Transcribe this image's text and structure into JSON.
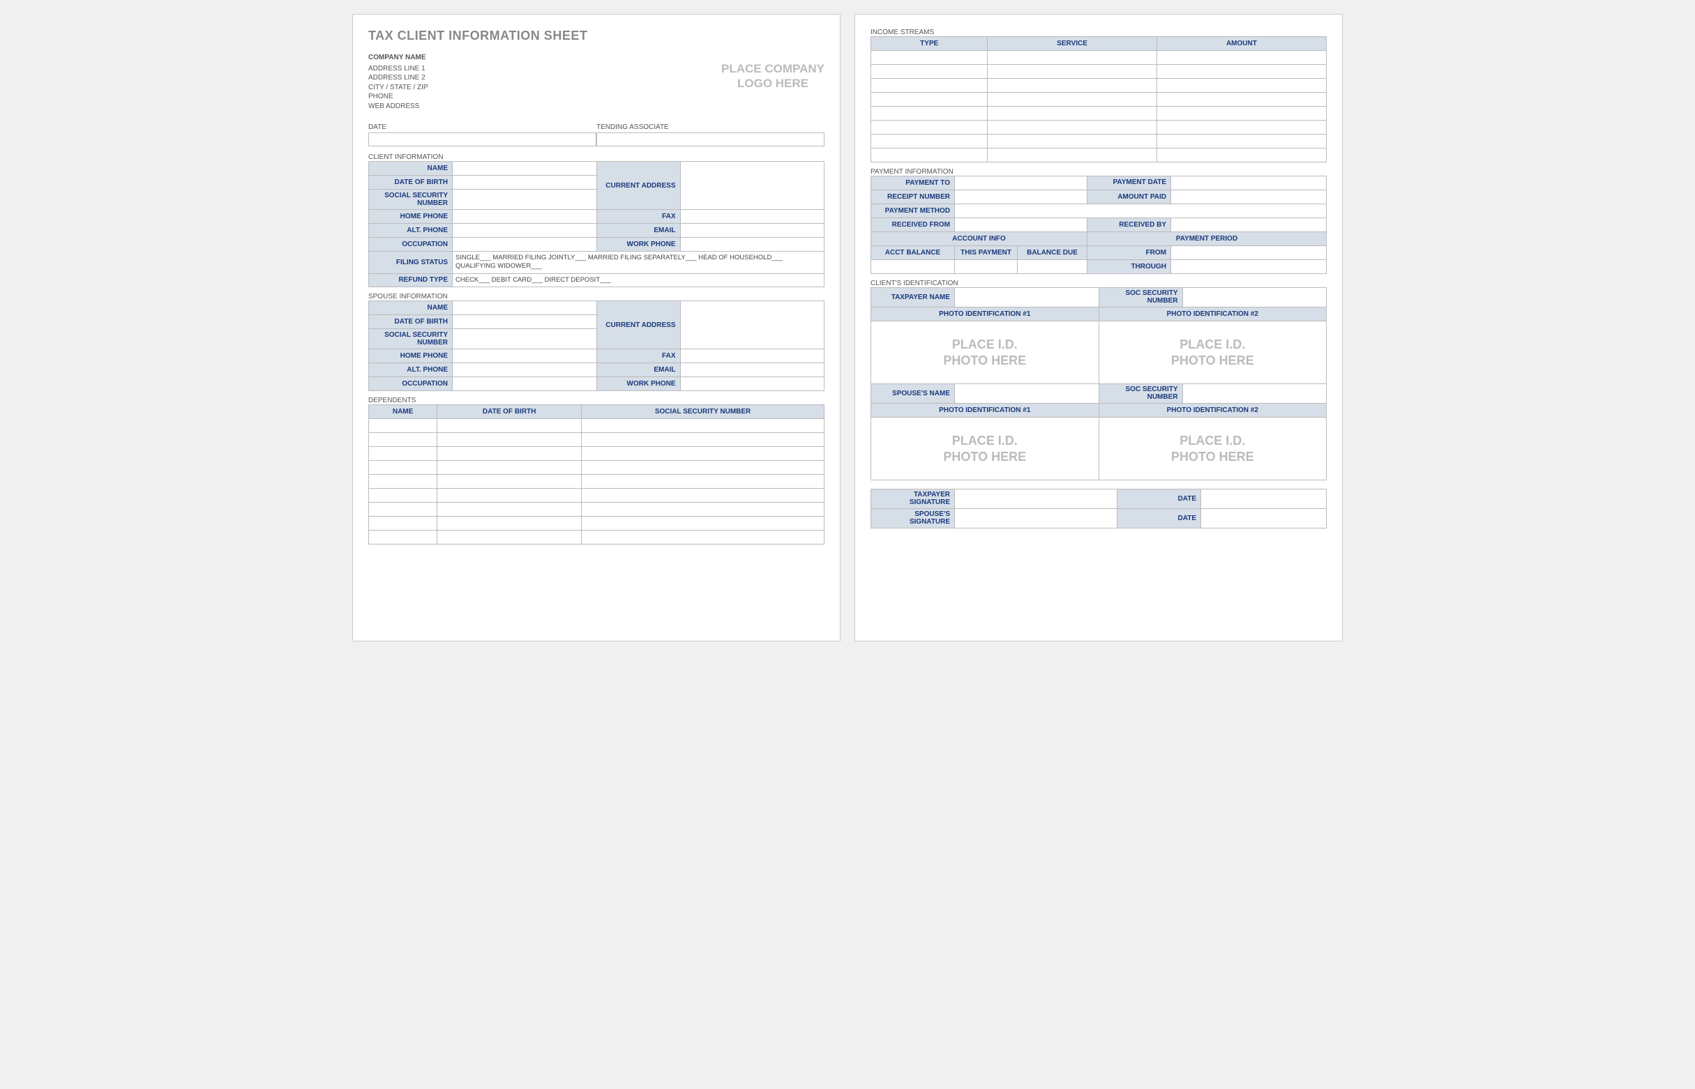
{
  "colors": {
    "header_bg": "#d6dee8",
    "header_text": "#1a3a7a",
    "border": "#bbbbbb",
    "muted_text": "#888888",
    "placeholder": "#bbbbbb",
    "body_text": "#333333",
    "page_bg": "#ffffff"
  },
  "page1": {
    "title": "TAX CLIENT INFORMATION SHEET",
    "company": {
      "name": "COMPANY NAME",
      "addr1": "ADDRESS LINE 1",
      "addr2": "ADDRESS LINE 2",
      "csz": "CITY / STATE / ZIP",
      "phone": "PHONE",
      "web": "WEB ADDRESS"
    },
    "logo_placeholder_l1": "PLACE COMPANY",
    "logo_placeholder_l2": "LOGO HERE",
    "date_label": "DATE",
    "assoc_label": "TENDING ASSOCIATE",
    "client_info": {
      "section": "CLIENT INFORMATION",
      "name": "NAME",
      "dob": "DATE OF BIRTH",
      "ssn": "SOCIAL SECURITY NUMBER",
      "current_addr": "CURRENT ADDRESS",
      "home_phone": "HOME PHONE",
      "fax": "FAX",
      "alt_phone": "ALT. PHONE",
      "email": "EMAIL",
      "occupation": "OCCUPATION",
      "work_phone": "WORK PHONE",
      "filing_status": "FILING STATUS",
      "filing_options": "SINGLE___   MARRIED FILING JOINTLY___   MARRIED FILING SEPARATELY___   HEAD OF HOUSEHOLD___   QUALIFYING WIDOWER___",
      "refund_type": "REFUND TYPE",
      "refund_options": "CHECK___   DEBIT CARD___   DIRECT DEPOSIT___"
    },
    "spouse_info": {
      "section": "SPOUSE INFORMATION",
      "name": "NAME",
      "dob": "DATE OF BIRTH",
      "ssn": "SOCIAL SECURITY NUMBER",
      "current_addr": "CURRENT ADDRESS",
      "home_phone": "HOME PHONE",
      "fax": "FAX",
      "alt_phone": "ALT. PHONE",
      "email": "EMAIL",
      "occupation": "OCCUPATION",
      "work_phone": "WORK PHONE"
    },
    "dependents": {
      "section": "DEPENDENTS",
      "name": "NAME",
      "dob": "DATE OF BIRTH",
      "ssn": "SOCIAL SECURITY NUMBER",
      "row_count": 9
    }
  },
  "page2": {
    "income": {
      "section": "INCOME STREAMS",
      "type": "TYPE",
      "service": "SERVICE",
      "amount": "AMOUNT",
      "row_count": 8
    },
    "payment": {
      "section": "PAYMENT INFORMATION",
      "payment_to": "PAYMENT TO",
      "payment_date": "PAYMENT DATE",
      "receipt_number": "RECEIPT NUMBER",
      "amount_paid": "AMOUNT PAID",
      "payment_method": "PAYMENT METHOD",
      "received_from": "RECEIVED FROM",
      "received_by": "RECEIVED BY",
      "account_info": "ACCOUNT INFO",
      "payment_period": "PAYMENT PERIOD",
      "acct_balance": "ACCT BALANCE",
      "this_payment": "THIS PAYMENT",
      "balance_due": "BALANCE DUE",
      "from": "FROM",
      "through": "THROUGH"
    },
    "client_id": {
      "section": "CLIENT'S IDENTIFICATION",
      "taxpayer_name": "TAXPAYER NAME",
      "soc_sec": "SOC SECURITY NUMBER",
      "photo1": "PHOTO IDENTIFICATION #1",
      "photo2": "PHOTO IDENTIFICATION #2",
      "spouse_name": "SPOUSE'S NAME",
      "place_id_l1": "PLACE I.D.",
      "place_id_l2": "PHOTO HERE"
    },
    "signatures": {
      "taxpayer": "TAXPAYER SIGNATURE",
      "spouse": "SPOUSE'S SIGNATURE",
      "date": "DATE"
    }
  }
}
